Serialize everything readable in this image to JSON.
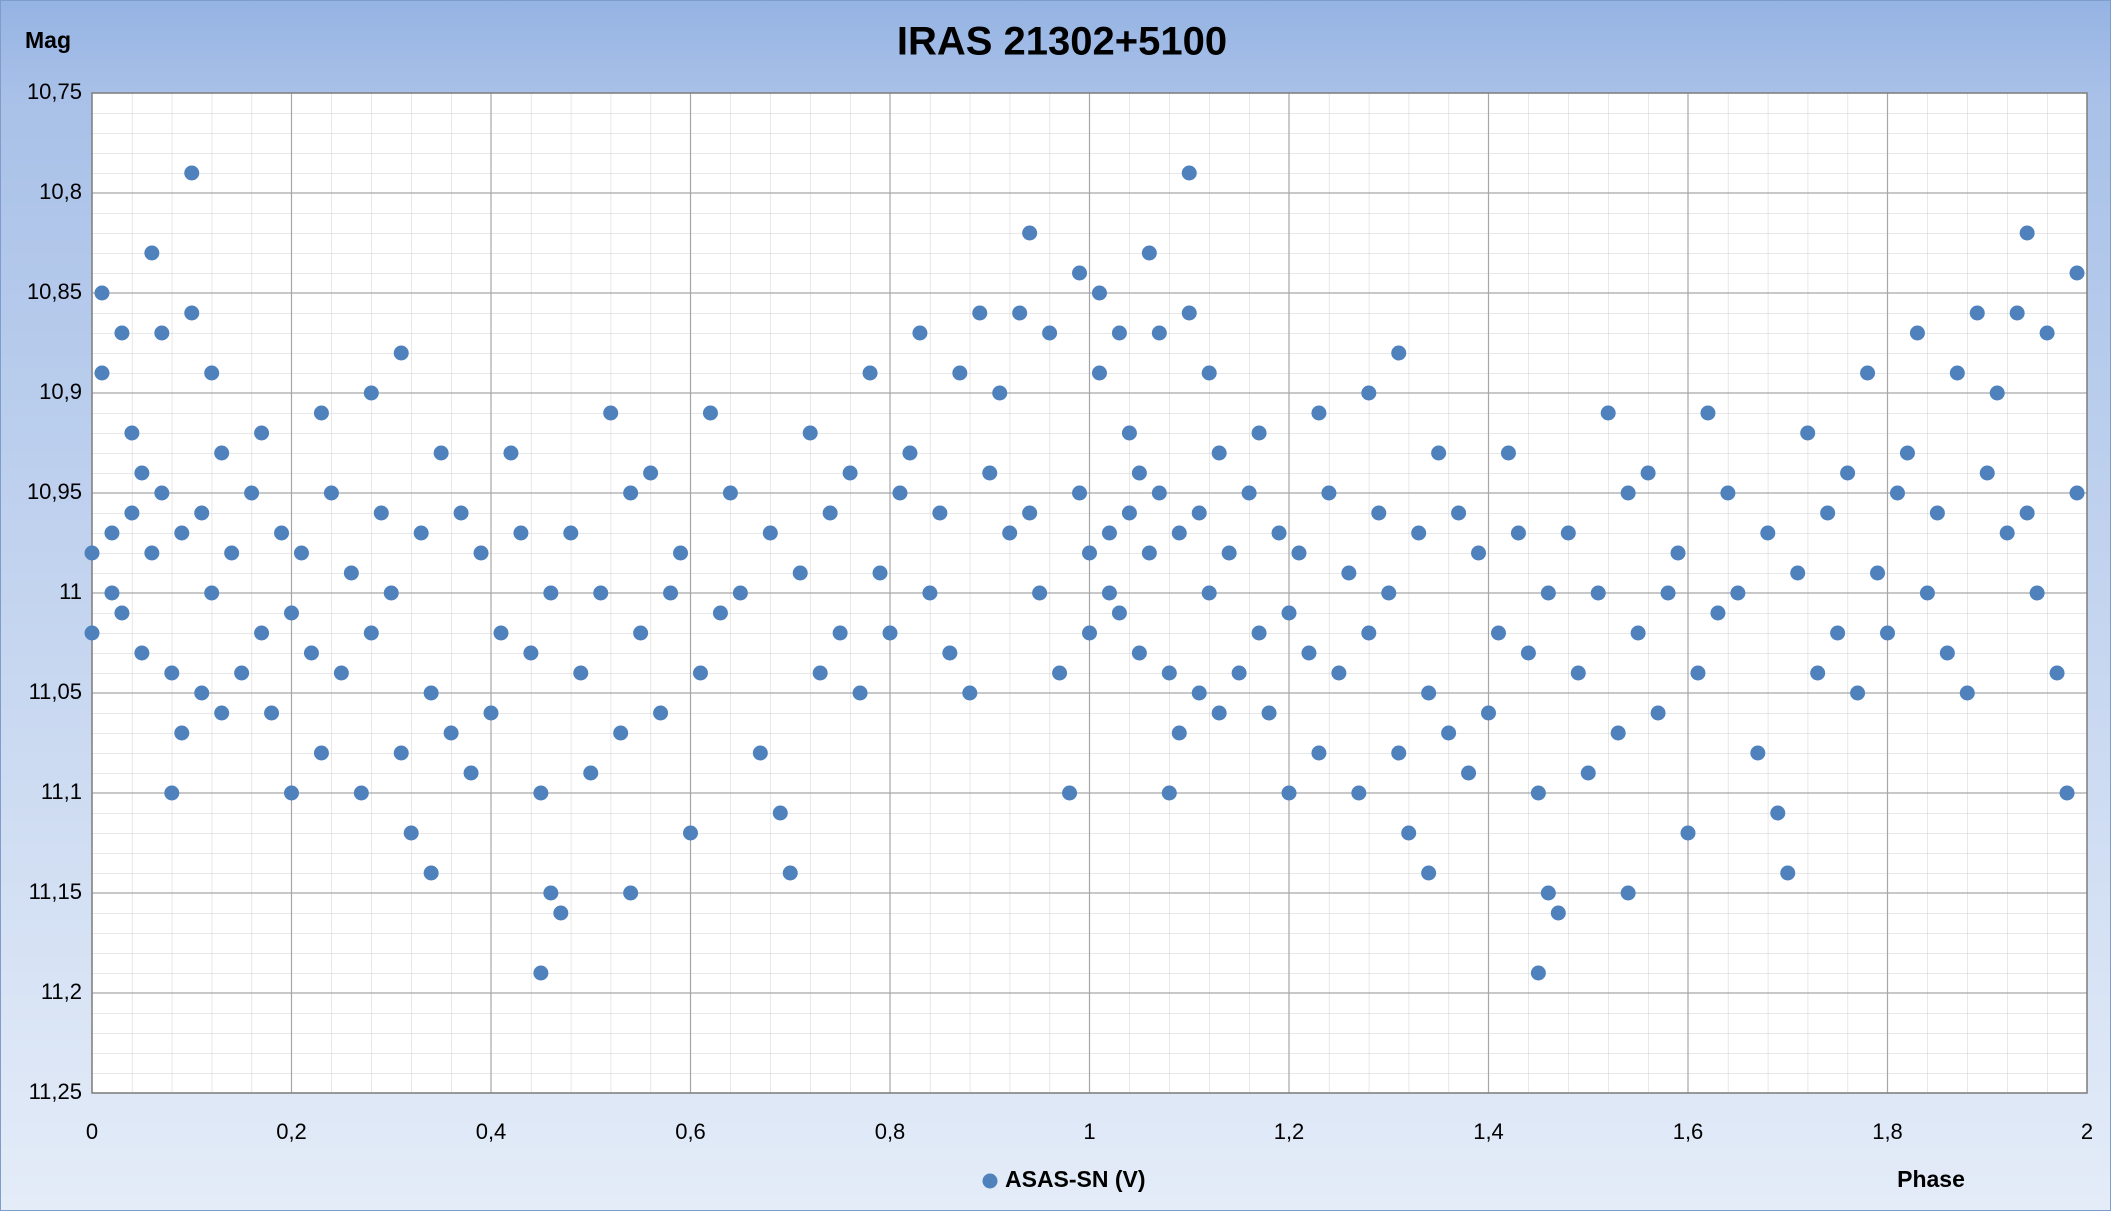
{
  "chart_data": {
    "type": "scatter",
    "title": "IRAS 21302+5100",
    "y_label": "Mag",
    "x_label": "Phase",
    "xlim": [
      0,
      2
    ],
    "xticks": [
      0,
      {
        "value": 0.2,
        "label": "0,2"
      },
      {
        "value": 0.4,
        "label": "0,4"
      },
      {
        "value": 0.6,
        "label": "0,6"
      },
      {
        "value": 0.8,
        "label": "0,8"
      },
      1,
      {
        "value": 1.2,
        "label": "1,2"
      },
      {
        "value": 1.4,
        "label": "1,4"
      },
      {
        "value": 1.6,
        "label": "1,6"
      },
      {
        "value": 1.8,
        "label": "1,8"
      },
      2
    ],
    "ylim": [
      10.75,
      11.25
    ],
    "y_inverted": true,
    "yticks": [
      {
        "value": 10.75,
        "label": "10,75"
      },
      {
        "value": 10.8,
        "label": "10,8"
      },
      {
        "value": 10.85,
        "label": "10,85"
      },
      {
        "value": 10.9,
        "label": "10,9"
      },
      {
        "value": 10.95,
        "label": "10,95"
      },
      11,
      {
        "value": 11.05,
        "label": "11,05"
      },
      {
        "value": 11.1,
        "label": "11,1"
      },
      {
        "value": 11.15,
        "label": "11,15"
      },
      {
        "value": 11.2,
        "label": "11,2"
      },
      {
        "value": 11.25,
        "label": "11,25"
      }
    ],
    "grid": true,
    "legend": "bottom",
    "x": [
      0,
      0,
      0.01,
      0.01,
      0.02,
      0.02,
      0.03,
      0.03,
      0.04,
      0.04,
      0.05,
      0.05,
      0.06,
      0.06,
      0.07,
      0.07,
      0.08,
      0.08,
      0.09,
      0.09,
      0.1,
      0.1,
      0.11,
      0.11,
      0.12,
      0.12,
      0.13,
      0.13,
      0.14,
      0.15,
      0.16,
      0.17,
      0.17,
      0.18,
      0.19,
      0.2,
      0.2,
      0.21,
      0.22,
      0.23,
      0.23,
      0.24,
      0.25,
      0.26,
      0.27,
      0.28,
      0.28,
      0.29,
      0.3,
      0.31,
      0.31,
      0.32,
      0.33,
      0.34,
      0.34,
      0.35,
      0.36,
      0.37,
      0.38,
      0.39,
      0.4,
      0.41,
      0.42,
      0.43,
      0.44,
      0.45,
      0.45,
      0.46,
      0.46,
      0.47,
      0.48,
      0.49,
      0.5,
      0.51,
      0.52,
      0.53,
      0.54,
      0.54,
      0.55,
      0.56,
      0.57,
      0.58,
      0.59,
      0.6,
      0.61,
      0.62,
      0.63,
      0.64,
      0.65,
      0.67,
      0.68,
      0.69,
      0.7,
      0.71,
      0.72,
      0.73,
      0.74,
      0.75,
      0.76,
      0.77,
      0.78,
      0.79,
      0.8,
      0.81,
      0.82,
      0.83,
      0.84,
      0.85,
      0.86,
      0.87,
      0.88,
      0.89,
      0.9,
      0.91,
      0.92,
      0.93,
      0.94,
      0.94,
      0.95,
      0.96,
      0.97,
      0.98,
      0.99,
      0.99,
      1,
      1,
      1.01,
      1.01,
      1.02,
      1.02,
      1.03,
      1.03,
      1.04,
      1.04,
      1.05,
      1.05,
      1.06,
      1.06,
      1.07,
      1.07,
      1.08,
      1.08,
      1.09,
      1.09,
      1.1,
      1.1,
      1.11,
      1.11,
      1.12,
      1.12,
      1.13,
      1.13,
      1.14,
      1.15,
      1.16,
      1.17,
      1.17,
      1.18,
      1.19,
      1.2,
      1.2,
      1.21,
      1.22,
      1.23,
      1.23,
      1.24,
      1.25,
      1.26,
      1.27,
      1.28,
      1.28,
      1.29,
      1.3,
      1.31,
      1.31,
      1.32,
      1.33,
      1.34,
      1.34,
      1.35,
      1.36,
      1.37,
      1.38,
      1.39,
      1.4,
      1.41,
      1.42,
      1.43,
      1.44,
      1.45,
      1.45,
      1.46,
      1.46,
      1.47,
      1.48,
      1.49,
      1.5,
      1.51,
      1.52,
      1.53,
      1.54,
      1.54,
      1.55,
      1.56,
      1.57,
      1.58,
      1.59,
      1.6,
      1.61,
      1.62,
      1.63,
      1.64,
      1.65,
      1.67,
      1.68,
      1.69,
      1.7,
      1.71,
      1.72,
      1.73,
      1.74,
      1.75,
      1.76,
      1.77,
      1.78,
      1.79,
      1.8,
      1.81,
      1.82,
      1.83,
      1.84,
      1.85,
      1.86,
      1.87,
      1.88,
      1.89,
      1.9,
      1.91,
      1.92,
      1.93,
      1.94,
      1.94,
      1.95,
      1.96,
      1.97,
      1.98,
      1.99,
      1.99
    ],
    "series": [
      {
        "name": "ASAS-SN (V)",
        "color": "#4f81bd",
        "values": [
          11.02,
          10.98,
          10.85,
          10.89,
          10.97,
          11,
          10.87,
          11.01,
          10.92,
          10.96,
          11.03,
          10.94,
          10.83,
          10.98,
          10.95,
          10.87,
          11.1,
          11.04,
          10.97,
          11.07,
          10.79,
          10.86,
          11.05,
          10.96,
          10.89,
          11,
          10.93,
          11.06,
          10.98,
          11.04,
          10.95,
          11.02,
          10.92,
          11.06,
          10.97,
          11.1,
          11.01,
          10.98,
          11.03,
          10.91,
          11.08,
          10.95,
          11.04,
          10.99,
          11.1,
          10.9,
          11.02,
          10.96,
          11,
          10.88,
          11.08,
          11.12,
          10.97,
          11.05,
          11.14,
          10.93,
          11.07,
          10.96,
          11.09,
          10.98,
          11.06,
          11.02,
          10.93,
          10.97,
          11.03,
          11.19,
          11.1,
          11.15,
          11,
          11.16,
          10.97,
          11.04,
          11.09,
          11,
          10.91,
          11.07,
          11.15,
          10.95,
          11.02,
          10.94,
          11.06,
          11,
          10.98,
          11.12,
          11.04,
          10.91,
          11.01,
          10.95,
          11,
          11.08,
          10.97,
          11.11,
          11.14,
          10.99,
          10.92,
          11.04,
          10.96,
          11.02,
          10.94,
          11.05,
          10.89,
          10.99,
          11.02,
          10.95,
          10.93,
          10.87,
          11,
          10.96,
          11.03,
          10.89,
          11.05,
          10.86,
          10.94,
          10.9,
          10.97,
          10.86,
          10.82,
          10.96,
          11,
          10.87,
          11.04,
          11.1,
          10.84,
          10.95,
          11.02,
          10.98,
          10.85,
          10.89,
          10.97,
          11,
          10.87,
          11.01,
          10.92,
          10.96,
          11.03,
          10.94,
          10.83,
          10.98,
          10.95,
          10.87,
          11.1,
          11.04,
          10.97,
          11.07,
          10.79,
          10.86,
          11.05,
          10.96,
          10.89,
          11,
          10.93,
          11.06,
          10.98,
          11.04,
          10.95,
          11.02,
          10.92,
          11.06,
          10.97,
          11.1,
          11.01,
          10.98,
          11.03,
          10.91,
          11.08,
          10.95,
          11.04,
          10.99,
          11.1,
          10.9,
          11.02,
          10.96,
          11,
          10.88,
          11.08,
          11.12,
          10.97,
          11.05,
          11.14,
          10.93,
          11.07,
          10.96,
          11.09,
          10.98,
          11.06,
          11.02,
          10.93,
          10.97,
          11.03,
          11.19,
          11.1,
          11.15,
          11,
          11.16,
          10.97,
          11.04,
          11.09,
          11,
          10.91,
          11.07,
          11.15,
          10.95,
          11.02,
          10.94,
          11.06,
          11,
          10.98,
          11.12,
          11.04,
          10.91,
          11.01,
          10.95,
          11,
          11.08,
          10.97,
          11.11,
          11.14,
          10.99,
          10.92,
          11.04,
          10.96,
          11.02,
          10.94,
          11.05,
          10.89,
          10.99,
          11.02,
          10.95,
          10.93,
          10.87,
          11,
          10.96,
          11.03,
          10.89,
          11.05,
          10.86,
          10.94,
          10.9,
          10.97,
          10.86,
          10.82,
          10.96,
          11,
          10.87,
          11.04,
          11.1,
          10.84,
          10.95
        ]
      }
    ]
  }
}
